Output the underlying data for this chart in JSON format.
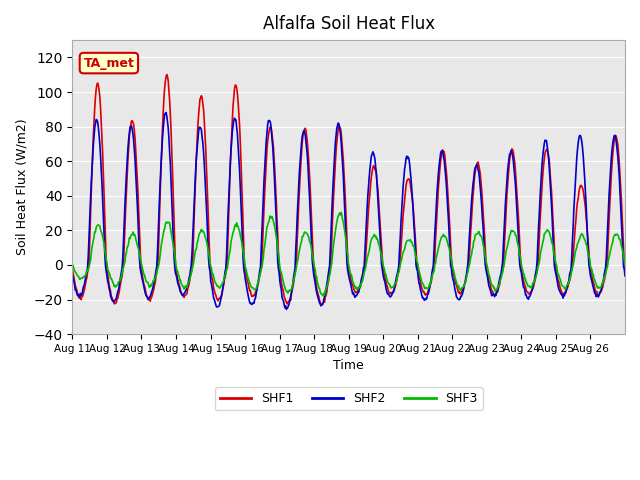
{
  "title": "Alfalfa Soil Heat Flux",
  "ylabel": "Soil Heat Flux (W/m2)",
  "xlabel": "Time",
  "ylim": [
    -40,
    130
  ],
  "yticks": [
    -40,
    -20,
    0,
    20,
    40,
    60,
    80,
    100,
    120
  ],
  "background_color": "#e8e8e8",
  "annotation_text": "TA_met",
  "annotation_bg": "#ffffcc",
  "annotation_border": "#cc0000",
  "series": {
    "SHF1": {
      "color": "#dd0000",
      "lw": 1.2
    },
    "SHF2": {
      "color": "#0000cc",
      "lw": 1.2
    },
    "SHF3": {
      "color": "#00bb00",
      "lw": 1.2
    }
  },
  "x_tick_labels": [
    "Aug 11",
    "Aug 12",
    "Aug 13",
    "Aug 14",
    "Aug 15",
    "Aug 16",
    "Aug 17",
    "Aug 18",
    "Aug 19",
    "Aug 20",
    "Aug 21",
    "Aug 22",
    "Aug 23",
    "Aug 24",
    "Aug 25",
    "Aug 26"
  ],
  "n_days": 16,
  "pts_per_day": 48,
  "day_peaks_shf1": [
    105,
    84,
    110,
    98,
    104,
    80,
    79,
    80,
    57,
    50,
    66,
    59,
    67,
    67,
    46,
    74
  ],
  "day_peaks_shf2": [
    84,
    80,
    88,
    80,
    85,
    84,
    77,
    82,
    65,
    63,
    66,
    58,
    66,
    72,
    75,
    75
  ],
  "day_peaks_shf3": [
    23,
    18,
    25,
    20,
    23,
    28,
    19,
    30,
    17,
    15,
    17,
    19,
    20,
    20,
    17,
    18
  ],
  "day_mins_shf1": [
    -19,
    -22,
    -20,
    -18,
    -20,
    -18,
    -22,
    -23,
    -16,
    -17,
    -17,
    -16,
    -17,
    -17,
    -17,
    -17
  ],
  "day_mins_shf2": [
    -18,
    -21,
    -19,
    -17,
    -24,
    -23,
    -25,
    -23,
    -18,
    -18,
    -20,
    -20,
    -18,
    -19,
    -18,
    -18
  ],
  "day_mins_shf3": [
    -8,
    -12,
    -12,
    -13,
    -13,
    -14,
    -16,
    -17,
    -14,
    -13,
    -14,
    -14,
    -14,
    -13,
    -13,
    -13
  ]
}
